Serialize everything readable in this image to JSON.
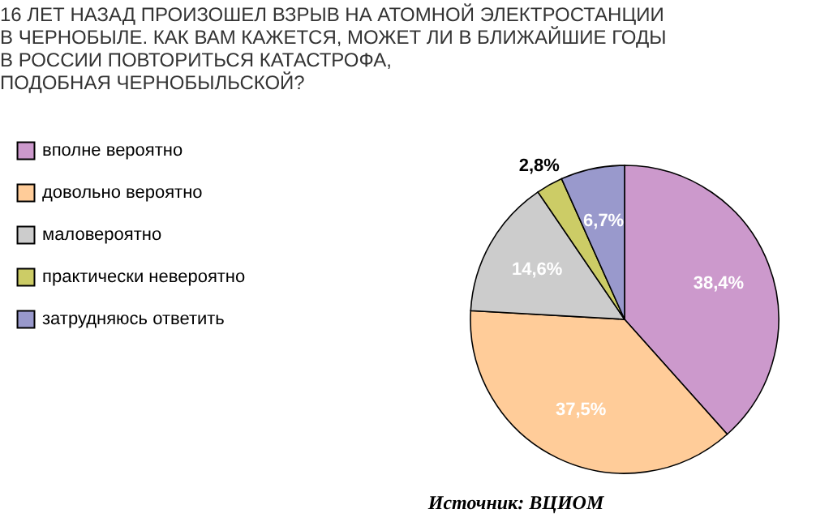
{
  "chart_data": {
    "type": "pie",
    "title": [
      "16 ЛЕТ НАЗАД ПРОИЗОШЕЛ ВЗРЫВ НА АТОМНОЙ ЭЛЕКТРОСТАНЦИИ",
      "В ЧЕРНОБЫЛЕ. КАК ВАМ КАЖЕТСЯ, МОЖЕТ ЛИ В БЛИЖАЙШИЕ ГОДЫ",
      "В РОССИИ ПОВТОРИТЬСЯ КАТАСТРОФА,",
      "ПОДОБНАЯ ЧЕРНОБЫЛЬСКОЙ?"
    ],
    "categories": [
      "вполне вероятно",
      "довольно вероятно",
      "маловероятно",
      "практически невероятно",
      "затрудняюсь ответить"
    ],
    "values": [
      38.4,
      37.5,
      14.6,
      2.8,
      6.7
    ],
    "value_labels": [
      "38,4%",
      "37,5%",
      "14,6%",
      "2,8%",
      "6,7%"
    ],
    "colors": [
      "#cc99cc",
      "#ffcc99",
      "#cccccc",
      "#cccc66",
      "#9999cc"
    ],
    "legend": "left",
    "annotations": [
      "Источник: ВЦИОМ"
    ]
  }
}
